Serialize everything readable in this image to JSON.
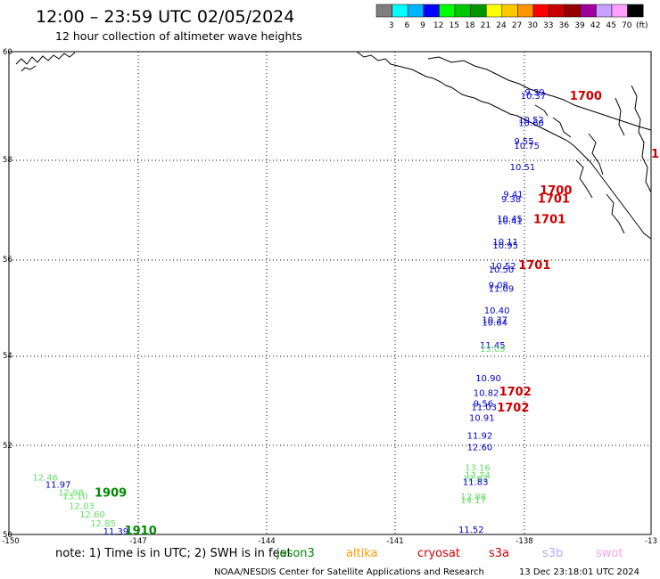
{
  "header": {
    "title": "12:00 – 23:59 UTC 02/05/2024",
    "subtitle": "12 hour collection of altimeter wave heights"
  },
  "legend": {
    "unit": "(ft)",
    "bins": [
      {
        "label": "3",
        "color": "#7f7f7f"
      },
      {
        "label": "6",
        "color": "#00ffff"
      },
      {
        "label": "9",
        "color": "#00b4ff"
      },
      {
        "label": "12",
        "color": "#0000ff"
      },
      {
        "label": "15",
        "color": "#00ff00"
      },
      {
        "label": "18",
        "color": "#00c800"
      },
      {
        "label": "21",
        "color": "#009600"
      },
      {
        "label": "24",
        "color": "#ffff00"
      },
      {
        "label": "27",
        "color": "#ffc800"
      },
      {
        "label": "30",
        "color": "#ff9600"
      },
      {
        "label": "33",
        "color": "#ff0000"
      },
      {
        "label": "36",
        "color": "#c80000"
      },
      {
        "label": "39",
        "color": "#960000"
      },
      {
        "label": "42",
        "color": "#a000a0"
      },
      {
        "label": "45",
        "color": "#c8a0ff"
      },
      {
        "label": "70",
        "color": "#ffa0ff"
      },
      {
        "label": "",
        "color": "#000000"
      }
    ]
  },
  "axes": {
    "lat_labels": [
      "60",
      "58",
      "56",
      "54",
      "52",
      "50"
    ],
    "lon_labels": [
      "-150",
      "-147",
      "-144",
      "-141",
      "-138",
      "-13"
    ]
  },
  "map": {
    "lon_range": [
      -150,
      -135
    ],
    "lat_range": [
      50,
      60
    ]
  },
  "observations": [
    {
      "lon": -137.95,
      "lat": 59.1,
      "value": "9.39",
      "color": "#0000cc"
    },
    {
      "lon": -138.05,
      "lat": 59.02,
      "value": "10.37",
      "color": "#0000cc"
    },
    {
      "lon": -138.1,
      "lat": 58.52,
      "value": "10.52",
      "color": "#0000cc"
    },
    {
      "lon": -138.1,
      "lat": 58.46,
      "value": "10.60",
      "color": "#0000cc"
    },
    {
      "lon": -138.2,
      "lat": 58.08,
      "value": "9.55",
      "color": "#0000cc"
    },
    {
      "lon": -138.2,
      "lat": 57.99,
      "value": "10.75",
      "color": "#0000cc"
    },
    {
      "lon": -138.3,
      "lat": 57.55,
      "value": "10.51",
      "color": "#0000cc"
    },
    {
      "lon": -138.45,
      "lat": 56.98,
      "value": "9.41",
      "color": "#0000cc"
    },
    {
      "lon": -138.5,
      "lat": 56.88,
      "value": "9.38",
      "color": "#0000cc"
    },
    {
      "lon": -138.6,
      "lat": 56.48,
      "value": "10.45",
      "color": "#0000cc"
    },
    {
      "lon": -138.6,
      "lat": 56.43,
      "value": "10.41",
      "color": "#0000cc"
    },
    {
      "lon": -138.7,
      "lat": 56.0,
      "value": "10.11",
      "color": "#0000cc"
    },
    {
      "lon": -138.7,
      "lat": 55.92,
      "value": "10.95",
      "color": "#0000cc"
    },
    {
      "lon": -138.75,
      "lat": 55.5,
      "value": "10.52",
      "color": "#0000cc"
    },
    {
      "lon": -138.8,
      "lat": 55.42,
      "value": "10.50",
      "color": "#0000cc"
    },
    {
      "lon": -138.8,
      "lat": 55.1,
      "value": "9.08",
      "color": "#0000cc"
    },
    {
      "lon": -138.8,
      "lat": 55.03,
      "value": "11.09",
      "color": "#0000cc"
    },
    {
      "lon": -138.9,
      "lat": 54.58,
      "value": "10.40",
      "color": "#0000cc"
    },
    {
      "lon": -138.95,
      "lat": 54.38,
      "value": "10.37",
      "color": "#0000cc"
    },
    {
      "lon": -138.95,
      "lat": 54.33,
      "value": "10.64",
      "color": "#0000cc"
    },
    {
      "lon": -139.0,
      "lat": 53.86,
      "value": "11.45",
      "color": "#0000cc"
    },
    {
      "lon": -139.0,
      "lat": 53.78,
      "value": "13.09",
      "color": "#66dd66"
    },
    {
      "lon": -139.1,
      "lat": 53.17,
      "value": "10.90",
      "color": "#0000cc"
    },
    {
      "lon": -139.15,
      "lat": 52.87,
      "value": "10.82",
      "color": "#0000cc"
    },
    {
      "lon": -139.15,
      "lat": 52.65,
      "value": "9.56",
      "color": "#0000cc"
    },
    {
      "lon": -139.2,
      "lat": 52.57,
      "value": "11.03",
      "color": "#0000cc"
    },
    {
      "lon": -139.25,
      "lat": 52.35,
      "value": "10.91",
      "color": "#0000cc"
    },
    {
      "lon": -139.3,
      "lat": 51.98,
      "value": "11.92",
      "color": "#0000cc"
    },
    {
      "lon": -139.3,
      "lat": 51.74,
      "value": "12.60",
      "color": "#0000cc"
    },
    {
      "lon": -139.35,
      "lat": 51.32,
      "value": "13.16",
      "color": "#66dd66"
    },
    {
      "lon": -139.35,
      "lat": 51.16,
      "value": "13.74",
      "color": "#66dd66"
    },
    {
      "lon": -139.4,
      "lat": 51.1,
      "value": "12.62",
      "color": "#66dd66"
    },
    {
      "lon": -139.4,
      "lat": 51.02,
      "value": "11.83",
      "color": "#0000cc"
    },
    {
      "lon": -139.45,
      "lat": 50.72,
      "value": "12.88",
      "color": "#66dd66"
    },
    {
      "lon": -139.45,
      "lat": 50.65,
      "value": "14.17",
      "color": "#66dd66"
    },
    {
      "lon": -139.5,
      "lat": 50.04,
      "value": "11.52",
      "color": "#0000cc"
    },
    {
      "lon": -149.45,
      "lat": 51.12,
      "value": "12.46",
      "color": "#66dd66"
    },
    {
      "lon": -149.15,
      "lat": 50.97,
      "value": "11.97",
      "color": "#0000cc"
    },
    {
      "lon": -148.85,
      "lat": 50.8,
      "value": "12.98",
      "color": "#66dd66"
    },
    {
      "lon": -148.75,
      "lat": 50.73,
      "value": "13.10",
      "color": "#66dd66"
    },
    {
      "lon": -148.6,
      "lat": 50.53,
      "value": "12.03",
      "color": "#66dd66"
    },
    {
      "lon": -148.35,
      "lat": 50.35,
      "value": "12.60",
      "color": "#66dd66"
    },
    {
      "lon": -148.1,
      "lat": 50.17,
      "value": "12.85",
      "color": "#66dd66"
    },
    {
      "lon": -147.8,
      "lat": 50.0,
      "value": "11.39",
      "color": "#0000cc"
    }
  ],
  "time_labels": [
    {
      "lon": -136.9,
      "lat": 59.0,
      "value": "1700",
      "color": "#cc0000"
    },
    {
      "lon": -137.6,
      "lat": 57.05,
      "value": "1700",
      "color": "#cc0000"
    },
    {
      "lon": -137.65,
      "lat": 56.87,
      "value": "1701",
      "color": "#cc0000"
    },
    {
      "lon": -137.75,
      "lat": 56.45,
      "value": "1701",
      "color": "#cc0000"
    },
    {
      "lon": -138.1,
      "lat": 55.5,
      "value": "1701",
      "color": "#cc0000"
    },
    {
      "lon": -138.55,
      "lat": 52.88,
      "value": "1702",
      "color": "#cc0000"
    },
    {
      "lon": -138.6,
      "lat": 52.55,
      "value": "1702",
      "color": "#cc0000"
    },
    {
      "lon": -135.0,
      "lat": 57.8,
      "value": "1",
      "color": "#cc0000"
    },
    {
      "lon": -148.0,
      "lat": 50.78,
      "value": "1909",
      "color": "#008800"
    },
    {
      "lon": -147.3,
      "lat": 50.0,
      "value": "1910",
      "color": "#008800"
    }
  ],
  "footer": {
    "note": "note:  1) Time is in UTC; 2) SWH is in feet",
    "satellites": [
      {
        "name": "jason3",
        "color": "#008800"
      },
      {
        "name": "altika",
        "color": "#ff9900"
      },
      {
        "name": "cryosat",
        "color": "#cc0000"
      },
      {
        "name": "s3a",
        "color": "#cc0000"
      },
      {
        "name": "s3b",
        "color": "#b8a8ff"
      },
      {
        "name": "swot",
        "color": "#ffa0e8"
      }
    ],
    "credit": "NOAA/NESDIS Center for Satellite Applications and Research",
    "timestamp": "13 Dec 23:18:01 UTC 2024"
  }
}
